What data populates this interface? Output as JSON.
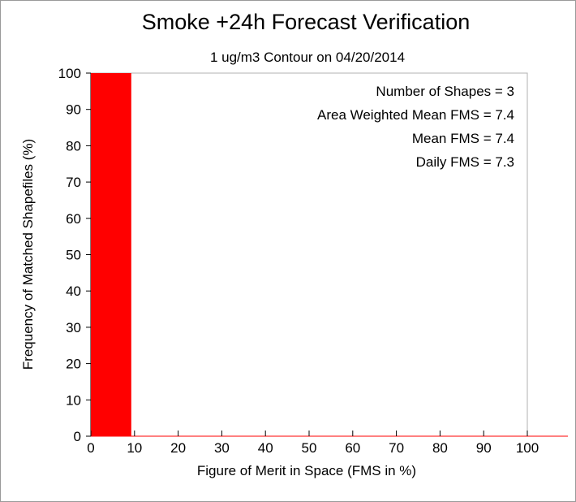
{
  "chart_data": {
    "type": "bar",
    "title": "Smoke +24h Forecast Verification",
    "subtitle": "1 ug/m3 Contour on 04/20/2014",
    "xlabel": "Figure of Merit in Space (FMS in %)",
    "ylabel": "Frequency of Matched Shapefiles (%)",
    "xlim": [
      0,
      100
    ],
    "ylim": [
      0,
      100
    ],
    "x_ticks": [
      "0",
      "10",
      "20",
      "30",
      "40",
      "50",
      "60",
      "70",
      "80",
      "90",
      "100"
    ],
    "y_ticks": [
      "0",
      "10",
      "20",
      "30",
      "40",
      "50",
      "60",
      "70",
      "80",
      "90",
      "100"
    ],
    "bin_width": 10,
    "bins": [
      {
        "x0": 0,
        "x1": 10,
        "value": 100
      },
      {
        "x0": 10,
        "x1": 20,
        "value": 0
      },
      {
        "x0": 20,
        "x1": 30,
        "value": 0
      },
      {
        "x0": 30,
        "x1": 40,
        "value": 0
      },
      {
        "x0": 40,
        "x1": 50,
        "value": 0
      },
      {
        "x0": 50,
        "x1": 60,
        "value": 0
      },
      {
        "x0": 60,
        "x1": 70,
        "value": 0
      },
      {
        "x0": 70,
        "x1": 80,
        "value": 0
      },
      {
        "x0": 80,
        "x1": 90,
        "value": 0
      },
      {
        "x0": 90,
        "x1": 100,
        "value": 0
      }
    ],
    "bar_color": "#ff0000",
    "annotations": [
      "Number of Shapes = 3",
      "Area Weighted Mean FMS = 7.4",
      "Mean FMS = 7.4",
      "Daily FMS = 7.3"
    ],
    "grid": false
  }
}
